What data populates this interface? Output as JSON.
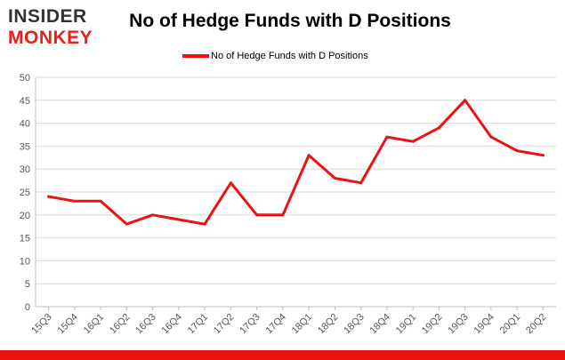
{
  "header": {
    "logo_top": "INSIDER",
    "logo_bottom": "MONKEY",
    "title": "No of Hedge Funds with D Positions"
  },
  "colors": {
    "series": "#ee1111",
    "logo_dark": "#333333",
    "logo_red": "#e8211c",
    "grid": "#d9d9d9",
    "bottom_bar": "#ee1111"
  },
  "chart_data": {
    "type": "line",
    "title": "No of Hedge Funds with D Positions",
    "xlabel": "",
    "ylabel": "",
    "categories": [
      "15Q3",
      "15Q4",
      "16Q1",
      "16Q2",
      "16Q3",
      "16Q4",
      "17Q1",
      "17Q2",
      "17Q3",
      "17Q4",
      "18Q1",
      "18Q2",
      "18Q3",
      "18Q4",
      "19Q1",
      "19Q2",
      "19Q3",
      "19Q4",
      "20Q1",
      "20Q2"
    ],
    "series": [
      {
        "name": "No of Hedge Funds with D Positions",
        "values": [
          24,
          23,
          23,
          18,
          20,
          19,
          18,
          27,
          20,
          20,
          33,
          28,
          27,
          37,
          36,
          39,
          45,
          37,
          34,
          33
        ]
      }
    ],
    "ylim": [
      0,
      50
    ],
    "yticks": [
      0,
      5,
      10,
      15,
      20,
      25,
      30,
      35,
      40,
      45,
      50
    ],
    "grid": "horizontal",
    "legend": "top-center"
  }
}
